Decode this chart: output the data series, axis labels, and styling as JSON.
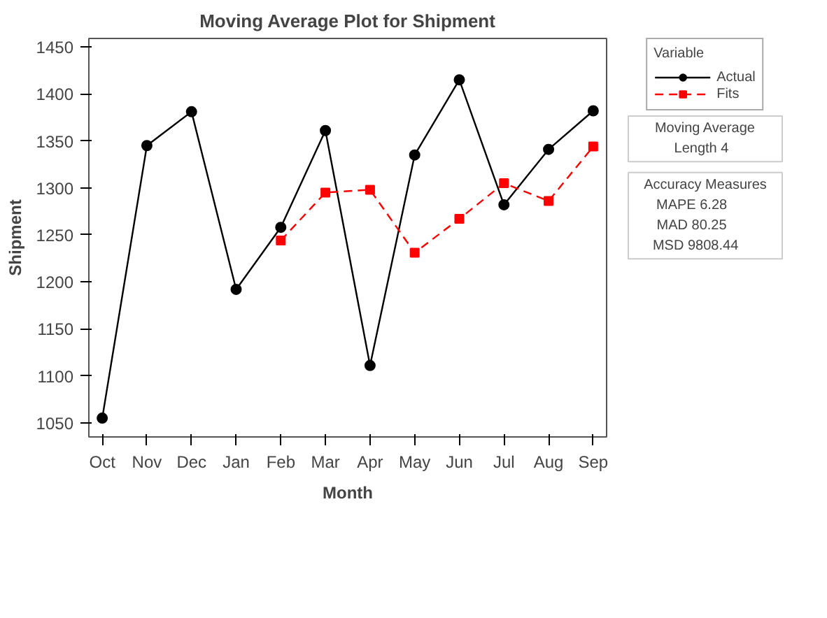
{
  "chart_data": {
    "type": "line",
    "title": "Moving Average Plot for Shipment",
    "xlabel": "Month",
    "ylabel": "Shipment",
    "categories": [
      "Oct",
      "Nov",
      "Dec",
      "Jan",
      "Feb",
      "Mar",
      "Apr",
      "May",
      "Jun",
      "Jul",
      "Aug",
      "Sep"
    ],
    "series": [
      {
        "name": "Actual",
        "color": "#000000",
        "marker": "circle",
        "line_style": "solid",
        "values": [
          1055,
          1345,
          1381,
          1192,
          1258,
          1361,
          1111,
          1335,
          1415,
          1282,
          1341,
          1382
        ]
      },
      {
        "name": "Fits",
        "color": "#ff0000",
        "marker": "square",
        "line_style": "dashed",
        "values": [
          null,
          null,
          null,
          null,
          1244,
          1295,
          1298,
          1231,
          1267,
          1305,
          1286,
          1344
        ]
      }
    ],
    "ylim": [
      1035,
      1459
    ],
    "yticks": [
      1050,
      1100,
      1150,
      1200,
      1250,
      1300,
      1350,
      1400,
      1450
    ],
    "grid": false,
    "legend": "right",
    "legend_title": "Variable",
    "annotations": [
      "Moving Average",
      "Length   4",
      "Accuracy Measures",
      "MAPE        6.28",
      "MAD        80.25",
      "MSD      9808.44"
    ]
  }
}
